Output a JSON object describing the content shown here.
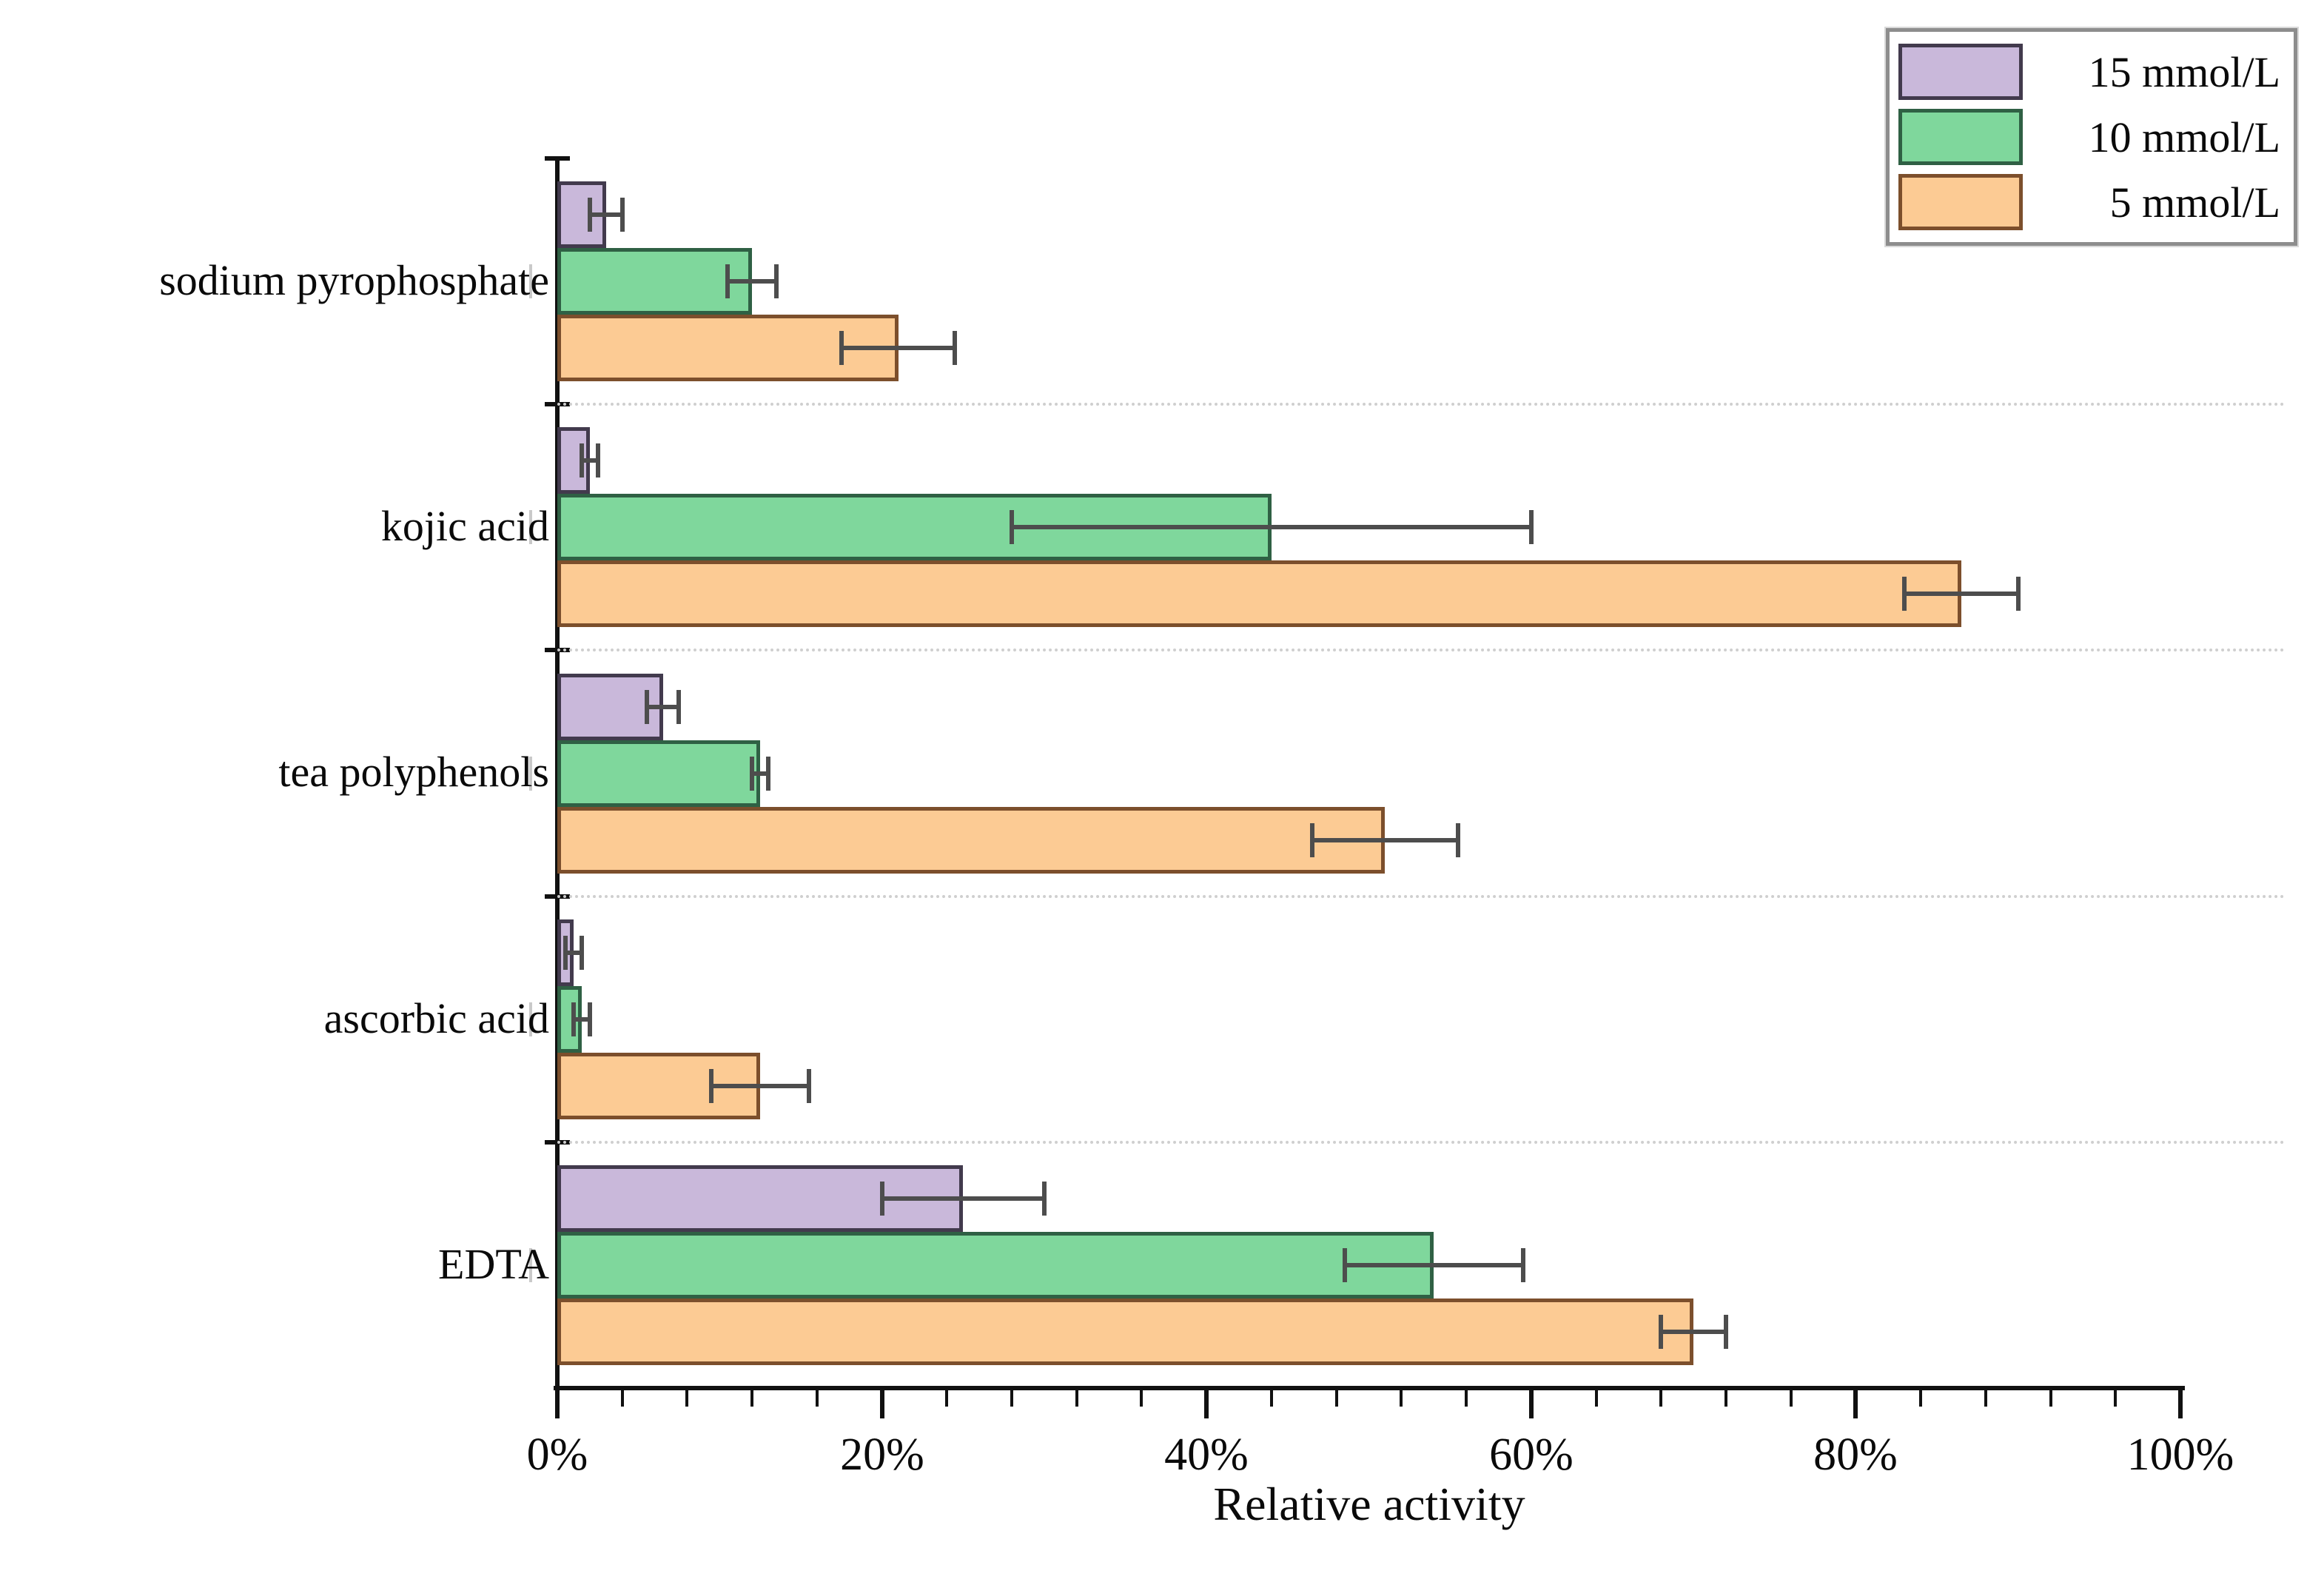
{
  "chart_data": {
    "type": "bar",
    "orientation": "horizontal",
    "title": "",
    "xlabel": "Relative activity",
    "ylabel": "",
    "x_range": [
      0,
      100
    ],
    "x_tick_step_major": 20,
    "x_tick_step_minor": 4,
    "x_ticks": [
      "0%",
      "20%",
      "40%",
      "60%",
      "80%",
      "100%"
    ],
    "x_tick_values": [
      0,
      20,
      40,
      60,
      80,
      100
    ],
    "grid": "dotted horizontal separators between category groups",
    "legend_position": "top-right",
    "categories": [
      "sodium pyrophosphate",
      "kojic acid",
      "tea polyphenols",
      "ascorbic acid",
      "EDTA"
    ],
    "series": [
      {
        "name": "15 mmol/L",
        "color": "#c9b8da",
        "border_color": "#423a4d",
        "values": [
          3,
          2,
          6.5,
          1,
          25
        ],
        "errors": [
          1,
          0.5,
          1,
          0.5,
          5
        ]
      },
      {
        "name": "10 mmol/L",
        "color": "#7fd79c",
        "border_color": "#2f6044",
        "values": [
          12,
          44,
          12.5,
          1.5,
          54
        ],
        "errors": [
          1.5,
          16,
          0.5,
          0.5,
          5.5
        ]
      },
      {
        "name": "5 mmol/L",
        "color": "#fccb94",
        "border_color": "#7c4f2c",
        "values": [
          21,
          86.5,
          51,
          12.5,
          70
        ],
        "errors": [
          3.5,
          3.5,
          4.5,
          3,
          2
        ]
      }
    ],
    "error_bar_color": "#4d4d4d"
  },
  "legend": {
    "items": [
      {
        "label": "15 mmol/L"
      },
      {
        "label": "10 mmol/L"
      },
      {
        "label": "5 mmol/L"
      }
    ]
  }
}
